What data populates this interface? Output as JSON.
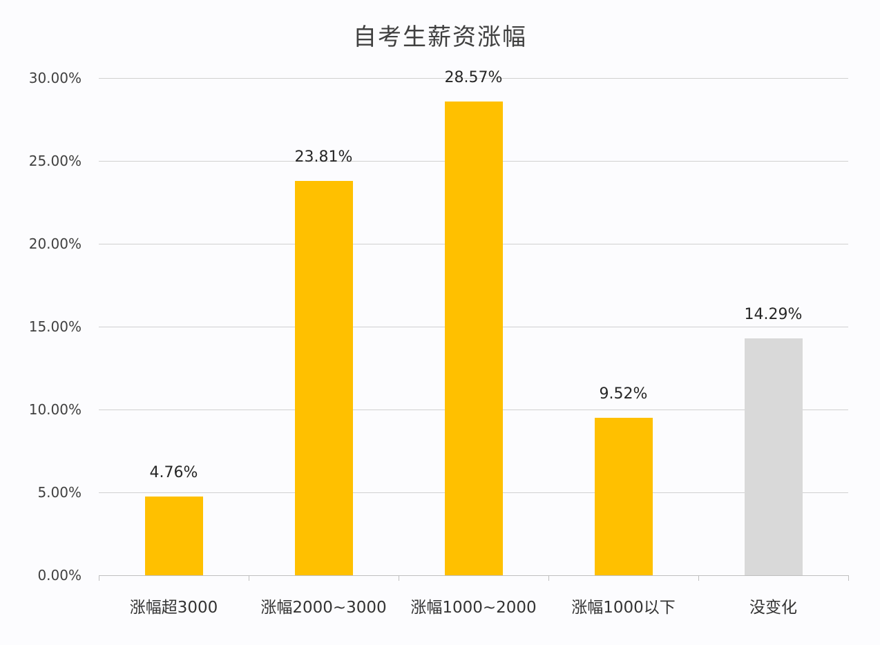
{
  "chart_data": {
    "type": "bar",
    "title": "自考生薪资涨幅",
    "xlabel": "",
    "ylabel": "",
    "ylim": [
      0,
      30
    ],
    "grid": true,
    "legend": "none",
    "yticks": [
      "0.00%",
      "5.00%",
      "10.00%",
      "15.00%",
      "20.00%",
      "25.00%",
      "30.00%"
    ],
    "categories": [
      "涨幅超3000",
      "涨幅2000~3000",
      "涨幅1000~2000",
      "涨幅1000以下",
      "没变化"
    ],
    "values": [
      4.76,
      23.81,
      28.57,
      9.52,
      14.29
    ],
    "data_labels": [
      "4.76%",
      "23.81%",
      "28.57%",
      "9.52%",
      "14.29%"
    ],
    "colors": [
      "#FFC000",
      "#FFC000",
      "#FFC000",
      "#FFC000",
      "#D9D9D9"
    ]
  }
}
